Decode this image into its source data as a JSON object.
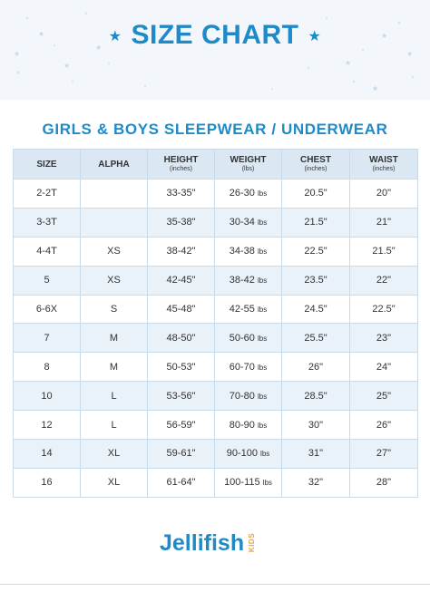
{
  "header": {
    "title": "SIZE CHART",
    "star_glyph": "★"
  },
  "subtitle": "GIRLS & BOYS SLEEPWEAR / UNDERWEAR",
  "table": {
    "columns": [
      {
        "label": "SIZE",
        "unit": ""
      },
      {
        "label": "ALPHA",
        "unit": ""
      },
      {
        "label": "HEIGHT",
        "unit": "(inches)"
      },
      {
        "label": "WEIGHT",
        "unit": "(lbs)"
      },
      {
        "label": "CHEST",
        "unit": "(inches)"
      },
      {
        "label": "WAIST",
        "unit": "(inches)"
      }
    ],
    "rows": [
      {
        "size": "2-2T",
        "alpha": "",
        "height": "33-35\"",
        "weight": "26-30",
        "weight_unit": "lbs",
        "chest": "20.5\"",
        "waist": "20\""
      },
      {
        "size": "3-3T",
        "alpha": "",
        "height": "35-38\"",
        "weight": "30-34",
        "weight_unit": "lbs",
        "chest": "21.5\"",
        "waist": "21\""
      },
      {
        "size": "4-4T",
        "alpha": "XS",
        "height": "38-42\"",
        "weight": "34-38",
        "weight_unit": "lbs",
        "chest": "22.5\"",
        "waist": "21.5\""
      },
      {
        "size": "5",
        "alpha": "XS",
        "height": "42-45\"",
        "weight": "38-42",
        "weight_unit": "lbs",
        "chest": "23.5\"",
        "waist": "22\""
      },
      {
        "size": "6-6X",
        "alpha": "S",
        "height": "45-48\"",
        "weight": "42-55",
        "weight_unit": "lbs",
        "chest": "24.5\"",
        "waist": "22.5\""
      },
      {
        "size": "7",
        "alpha": "M",
        "height": "48-50\"",
        "weight": "50-60",
        "weight_unit": "lbs",
        "chest": "25.5\"",
        "waist": "23\""
      },
      {
        "size": "8",
        "alpha": "M",
        "height": "50-53\"",
        "weight": "60-70",
        "weight_unit": "lbs",
        "chest": "26\"",
        "waist": "24\""
      },
      {
        "size": "10",
        "alpha": "L",
        "height": "53-56\"",
        "weight": "70-80",
        "weight_unit": "lbs",
        "chest": "28.5\"",
        "waist": "25\""
      },
      {
        "size": "12",
        "alpha": "L",
        "height": "56-59\"",
        "weight": "80-90",
        "weight_unit": "lbs",
        "chest": "30\"",
        "waist": "26\""
      },
      {
        "size": "14",
        "alpha": "XL",
        "height": "59-61\"",
        "weight": "90-100",
        "weight_unit": "lbs",
        "chest": "31\"",
        "waist": "27\""
      },
      {
        "size": "16",
        "alpha": "XL",
        "height": "61-64\"",
        "weight": "100-115",
        "weight_unit": "lbs",
        "chest": "32\"",
        "waist": "28\""
      }
    ]
  },
  "logo": {
    "name": "Jellifish",
    "tag": "KIDS"
  },
  "colors": {
    "brand_blue": "#1f8ac8",
    "header_row": "#dbe8f3",
    "stripe_row": "#e9f2f9",
    "logo_accent": "#e9a53a"
  }
}
